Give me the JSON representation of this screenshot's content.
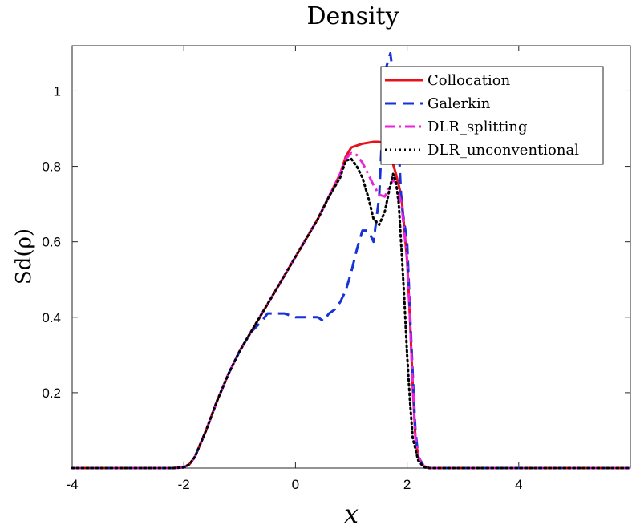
{
  "chart_data": {
    "type": "line",
    "title": "Density",
    "xlabel": "x",
    "ylabel": "Sd(ρ)",
    "xlim": [
      -4,
      6
    ],
    "ylim": [
      0,
      1.12
    ],
    "xticks": [
      -4,
      -2,
      0,
      2,
      4
    ],
    "xtick_labels": [
      "-4",
      "-2",
      "0",
      "2",
      "4"
    ],
    "yticks": [
      0.2,
      0.4,
      0.6,
      0.8,
      1
    ],
    "ytick_labels": [
      "0.2",
      "0.4",
      "0.6",
      "0.8",
      "1"
    ],
    "legend_position": "top-right",
    "series": [
      {
        "name": "Collocation",
        "color": "#e8101a",
        "style": "solid",
        "x": [
          -4,
          -2.2,
          -2.0,
          -1.9,
          -1.8,
          -1.6,
          -1.4,
          -1.2,
          -1.0,
          -0.8,
          -0.6,
          -0.4,
          -0.2,
          0.0,
          0.2,
          0.4,
          0.6,
          0.8,
          0.9,
          1.0,
          1.2,
          1.4,
          1.5,
          1.6,
          1.7,
          1.8,
          1.9,
          2.0,
          2.05,
          2.1,
          2.15,
          2.2,
          2.3,
          2.4,
          6
        ],
        "y": [
          0,
          0,
          0.002,
          0.01,
          0.03,
          0.1,
          0.18,
          0.25,
          0.31,
          0.36,
          0.41,
          0.46,
          0.51,
          0.56,
          0.61,
          0.66,
          0.72,
          0.78,
          0.825,
          0.85,
          0.86,
          0.865,
          0.865,
          0.86,
          0.83,
          0.78,
          0.72,
          0.55,
          0.4,
          0.22,
          0.08,
          0.03,
          0.005,
          0,
          0
        ]
      },
      {
        "name": "Galerkin",
        "color": "#1632d8",
        "style": "dashed",
        "x": [
          -4,
          -2.2,
          -2.0,
          -1.9,
          -1.8,
          -1.6,
          -1.4,
          -1.2,
          -1.0,
          -0.8,
          -0.6,
          -0.5,
          -0.4,
          -0.2,
          0.0,
          0.2,
          0.4,
          0.5,
          0.6,
          0.7,
          0.8,
          0.9,
          1.0,
          1.1,
          1.2,
          1.3,
          1.4,
          1.5,
          1.55,
          1.6,
          1.7,
          1.8,
          1.85,
          1.9,
          1.95,
          2.0,
          2.05,
          2.1,
          2.15,
          2.2,
          2.3,
          2.4,
          6
        ],
        "y": [
          0,
          0,
          0.002,
          0.01,
          0.03,
          0.1,
          0.18,
          0.25,
          0.31,
          0.36,
          0.39,
          0.41,
          0.41,
          0.41,
          0.4,
          0.4,
          0.4,
          0.39,
          0.41,
          0.42,
          0.44,
          0.47,
          0.52,
          0.58,
          0.63,
          0.63,
          0.6,
          0.72,
          0.88,
          1.05,
          1.1,
          0.98,
          0.85,
          0.7,
          0.65,
          0.6,
          0.42,
          0.25,
          0.1,
          0.03,
          0.005,
          0,
          0
        ]
      },
      {
        "name": "DLR_splitting",
        "color": "#ee22dd",
        "style": "dashdot",
        "x": [
          -4,
          -2.2,
          -2.0,
          -1.9,
          -1.8,
          -1.6,
          -1.4,
          -1.2,
          -1.0,
          -0.8,
          -0.6,
          -0.4,
          -0.2,
          0.0,
          0.2,
          0.4,
          0.6,
          0.8,
          0.9,
          1.0,
          1.1,
          1.2,
          1.3,
          1.4,
          1.5,
          1.6,
          1.7,
          1.75,
          1.8,
          1.9,
          2.0,
          2.05,
          2.1,
          2.15,
          2.2,
          2.3,
          2.4,
          6
        ],
        "y": [
          0,
          0,
          0.002,
          0.01,
          0.03,
          0.1,
          0.18,
          0.25,
          0.31,
          0.36,
          0.41,
          0.46,
          0.51,
          0.56,
          0.61,
          0.66,
          0.72,
          0.78,
          0.82,
          0.835,
          0.83,
          0.81,
          0.78,
          0.75,
          0.725,
          0.72,
          0.75,
          0.765,
          0.755,
          0.7,
          0.55,
          0.4,
          0.22,
          0.08,
          0.03,
          0.005,
          0,
          0
        ]
      },
      {
        "name": "DLR_unconventional",
        "color": "#000000",
        "style": "dotted",
        "x": [
          -4,
          -2.2,
          -2.0,
          -1.9,
          -1.8,
          -1.6,
          -1.4,
          -1.2,
          -1.0,
          -0.8,
          -0.6,
          -0.4,
          -0.2,
          0.0,
          0.2,
          0.4,
          0.6,
          0.8,
          0.9,
          1.0,
          1.1,
          1.2,
          1.3,
          1.4,
          1.5,
          1.6,
          1.7,
          1.75,
          1.8,
          1.85,
          1.9,
          1.95,
          2.0,
          2.05,
          2.1,
          2.2,
          2.3,
          2.4,
          6
        ],
        "y": [
          0,
          0,
          0.002,
          0.01,
          0.03,
          0.1,
          0.18,
          0.25,
          0.31,
          0.36,
          0.41,
          0.46,
          0.51,
          0.56,
          0.61,
          0.66,
          0.72,
          0.77,
          0.815,
          0.82,
          0.8,
          0.77,
          0.72,
          0.66,
          0.645,
          0.68,
          0.75,
          0.78,
          0.76,
          0.7,
          0.58,
          0.45,
          0.3,
          0.18,
          0.08,
          0.02,
          0.002,
          0,
          0
        ]
      }
    ]
  }
}
